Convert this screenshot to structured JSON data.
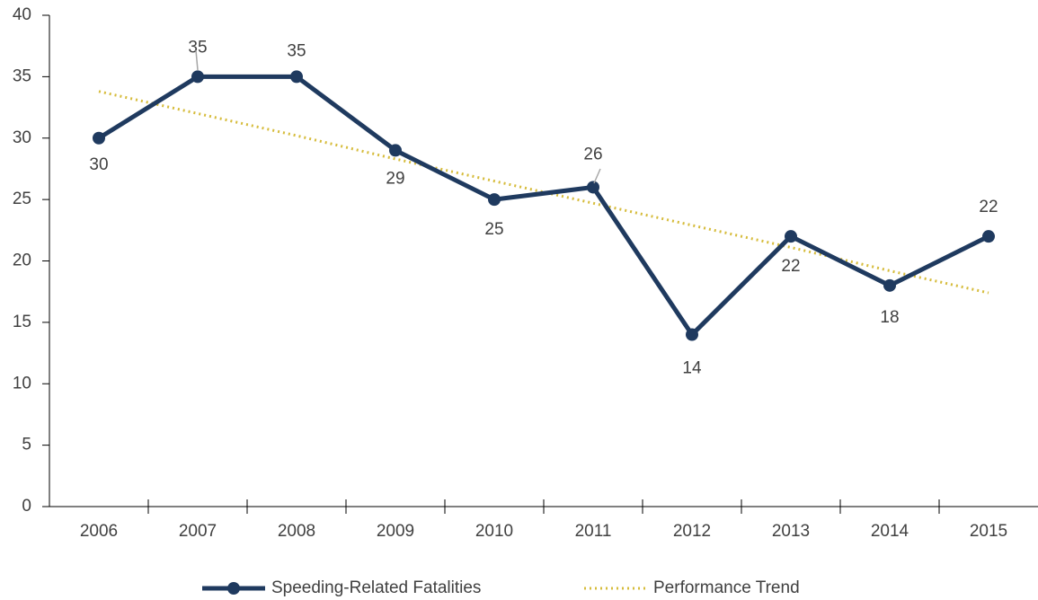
{
  "chart_data": {
    "type": "line",
    "categories": [
      "2006",
      "2007",
      "2008",
      "2009",
      "2010",
      "2011",
      "2012",
      "2013",
      "2014",
      "2015"
    ],
    "series": [
      {
        "name": "Speeding-Related Fatalities",
        "color": "#1f3a5f",
        "values": [
          30,
          35,
          35,
          29,
          25,
          26,
          14,
          22,
          18,
          22
        ]
      },
      {
        "name": "Performance Trend",
        "color": "#d6bc3c",
        "style": "dotted",
        "values": [
          33.8,
          32.0,
          30.2,
          28.3,
          26.5,
          24.7,
          22.9,
          21.1,
          19.2,
          17.4
        ]
      }
    ],
    "ylim": [
      0,
      40
    ],
    "yticks": [
      0,
      5,
      10,
      15,
      20,
      25,
      30,
      35,
      40
    ],
    "data_labels": true,
    "legend": "bottom"
  }
}
